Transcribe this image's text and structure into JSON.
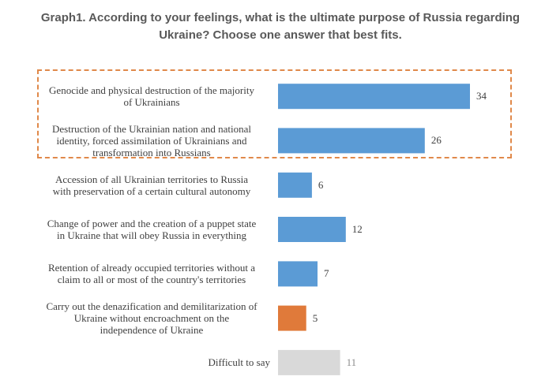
{
  "chart_data": {
    "type": "bar",
    "orientation": "horizontal",
    "title": "Graph1. According to your feelings, what is the ultimate purpose of Russia regarding Ukraine? Choose one answer that best fits.",
    "title_lines": [
      "Graph1. According to your feelings, what is the ultimate purpose of Russia regarding",
      "Ukraine? Choose one answer that best fits."
    ],
    "categories": [
      [
        "Genocide and physical destruction of the majority",
        "of Ukrainians"
      ],
      [
        "Destruction of the Ukrainian nation and national",
        "identity, forced assimilation of Ukrainians and",
        "transformation into Russians"
      ],
      [
        "Accession of all Ukrainian territories to Russia",
        "with preservation of a certain cultural autonomy"
      ],
      [
        "Change of power and the creation of a puppet state",
        "in Ukraine that will obey Russia in everything"
      ],
      [
        "Retention of already occupied territories without a",
        "claim to all or most of the country's territories"
      ],
      [
        "Carry out the denazification and demilitarization of",
        "Ukraine without encroachment on the",
        "independence of Ukraine"
      ],
      [
        "Difficult to say"
      ]
    ],
    "values": [
      34,
      26,
      6,
      12,
      7,
      5,
      11
    ],
    "value_labels": [
      "34",
      "26",
      "6",
      "12",
      "7",
      "5",
      "11"
    ],
    "bar_colors": [
      "#5b9bd5",
      "#5b9bd5",
      "#5b9bd5",
      "#5b9bd5",
      "#5b9bd5",
      "#e07a3a",
      "#d9d9d9"
    ],
    "xlim": [
      0,
      35
    ],
    "highlighted_categories": [
      0,
      1
    ],
    "highlight_color": "#e0894a",
    "grid": false,
    "legend": "none"
  }
}
